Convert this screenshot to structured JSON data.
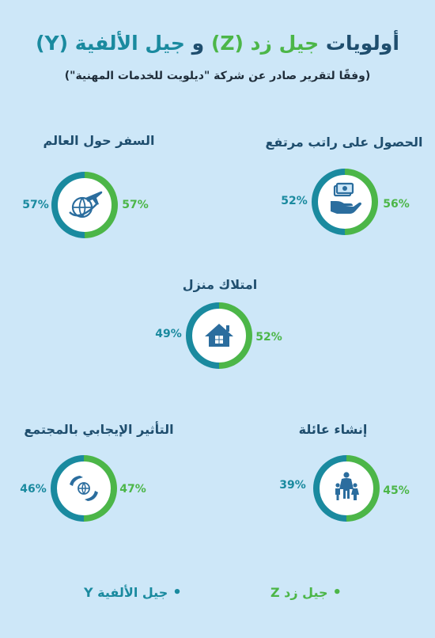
{
  "title": {
    "part1": "أولويات",
    "part2": "جيل زد (Z)",
    "part3": "و",
    "part4": "جيل الألفية  (Y)"
  },
  "subtitle": "(وفقًا لتقرير صادر عن شركة \"ديلويت للخدمات المهنية\")",
  "legend": {
    "z_label": "جيل زد Z",
    "y_label": "جيل الألفية Y"
  },
  "colors": {
    "gen_z": "#4cb648",
    "gen_y": "#1a8a9f",
    "icon": "#2b6d9e"
  },
  "chart_data": {
    "type": "pie",
    "series": [
      {
        "name": "جيل زد Z",
        "values": [
          56,
          57,
          52,
          45,
          47
        ]
      },
      {
        "name": "جيل الألفية Y",
        "values": [
          52,
          57,
          49,
          39,
          46
        ]
      }
    ],
    "categories": [
      "الحصول على راتب مرتفع",
      "السفر حول العالم",
      "امتلاك منزل",
      "إنشاء عائلة",
      "التأثير الإيجابي بالمجتمع"
    ],
    "items": [
      {
        "label": "الحصول على راتب مرتفع",
        "z_text": "56%",
        "y_text": "52%",
        "icon": "money-hand-icon"
      },
      {
        "label": "السفر حول العالم",
        "z_text": "57%",
        "y_text": "57%",
        "icon": "globe-plane-icon"
      },
      {
        "label": "امتلاك منزل",
        "z_text": "52%",
        "y_text": "49%",
        "icon": "house-icon"
      },
      {
        "label": "إنشاء عائلة",
        "z_text": "45%",
        "y_text": "39%",
        "icon": "family-icon"
      },
      {
        "label": "التأثير الإيجابي بالمجتمع",
        "z_text": "47%",
        "y_text": "46%",
        "icon": "hands-globe-icon"
      }
    ]
  }
}
